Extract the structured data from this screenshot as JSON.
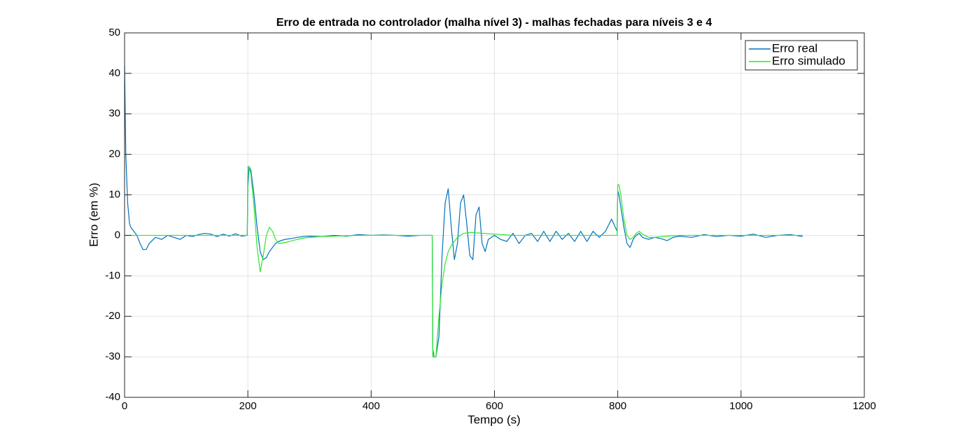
{
  "chart_data": {
    "type": "line",
    "title": "Erro de entrada no controlador (malha nível 3) - malhas fechadas para níveis 3 e 4",
    "x_label": "Tempo (s)",
    "y_label": "Erro (em %)",
    "x": [
      0,
      2,
      5,
      8,
      10,
      15,
      20,
      25,
      30,
      35,
      40,
      50,
      60,
      70,
      80,
      90,
      100,
      110,
      120,
      130,
      140,
      150,
      160,
      170,
      180,
      190,
      199,
      200,
      202,
      205,
      210,
      215,
      220,
      225,
      230,
      235,
      240,
      245,
      250,
      260,
      270,
      280,
      290,
      300,
      320,
      340,
      360,
      380,
      400,
      420,
      440,
      460,
      480,
      499,
      500,
      502,
      505,
      510,
      515,
      520,
      525,
      530,
      535,
      540,
      545,
      550,
      555,
      560,
      565,
      570,
      575,
      580,
      585,
      590,
      600,
      610,
      620,
      630,
      640,
      650,
      660,
      670,
      680,
      690,
      700,
      710,
      720,
      730,
      740,
      750,
      760,
      770,
      780,
      790,
      799,
      800,
      802,
      805,
      810,
      815,
      820,
      825,
      830,
      835,
      840,
      850,
      860,
      870,
      880,
      890,
      900,
      920,
      940,
      960,
      980,
      1000,
      1020,
      1040,
      1060,
      1080,
      1100
    ],
    "series": [
      {
        "name": "Erro real",
        "color": "#0072bd",
        "values": [
          42,
          20,
          8,
          3,
          2,
          1,
          0,
          -2,
          -3.5,
          -3.5,
          -2,
          -0.5,
          -1,
          0,
          -0.5,
          -1,
          0,
          -0.3,
          0.2,
          0.5,
          0.3,
          -0.3,
          0.3,
          -0.2,
          0.4,
          -0.2,
          0,
          12,
          17,
          16,
          10,
          2,
          -4,
          -6,
          -5.5,
          -4,
          -3,
          -2,
          -1.5,
          -1,
          -0.8,
          -0.5,
          -0.3,
          -0.2,
          -0.3,
          0,
          -0.2,
          0.2,
          0,
          0.1,
          0,
          -0.2,
          0,
          0,
          -28,
          -30,
          -30,
          -25,
          -5,
          8,
          11.5,
          2,
          -6,
          -2,
          8,
          10,
          3,
          -5,
          -6,
          5,
          7,
          -2,
          -4,
          -1,
          0,
          -1,
          -1.5,
          0.5,
          -2,
          0,
          0.5,
          -1.5,
          1,
          -1.5,
          1,
          -1,
          0.5,
          -1.5,
          1,
          -1.5,
          1,
          -0.5,
          1,
          4,
          1,
          11,
          10,
          7,
          2,
          -2,
          -3,
          -1,
          0,
          0.5,
          -0.5,
          -1,
          -0.5,
          -0.8,
          -1.3,
          -0.5,
          -0.2,
          -0.5,
          0.2,
          -0.3,
          0,
          -0.2,
          0.3,
          -0.5,
          0,
          0.2,
          -0.3
        ]
      },
      {
        "name": "Erro simulado",
        "color": "#2ee62e",
        "values": [
          0,
          0,
          0,
          0,
          0,
          0,
          0,
          0,
          0,
          0,
          0,
          0,
          0,
          0,
          0,
          0,
          0,
          0,
          0,
          0,
          0,
          0,
          0,
          0,
          0,
          0,
          0,
          17,
          17,
          15,
          7,
          -3,
          -9,
          -5,
          0,
          2,
          1,
          -1,
          -2,
          -1.8,
          -1.4,
          -1,
          -0.7,
          -0.5,
          -0.3,
          -0.2,
          -0.1,
          0,
          0,
          0,
          0,
          0,
          0,
          0,
          -30,
          -30,
          -30,
          -20,
          -12,
          -7,
          -4,
          -2.5,
          -1.5,
          -0.5,
          0,
          0.5,
          0.6,
          0.7,
          0.7,
          0.6,
          0.6,
          0.5,
          0.5,
          0.4,
          0.3,
          0.2,
          0.1,
          0,
          0,
          0,
          0,
          0,
          0,
          0,
          0,
          0,
          0,
          0,
          0,
          0,
          0,
          0,
          0,
          0,
          0,
          12.5,
          12.5,
          10,
          4,
          0,
          -1,
          -0.5,
          0.5,
          1,
          0.3,
          -0.5,
          -0.5,
          -0.3,
          -0.2,
          -0.1,
          0,
          0,
          0,
          0,
          0,
          0,
          0,
          0,
          0,
          0,
          0
        ]
      }
    ],
    "xlim": [
      0,
      1200
    ],
    "xticks": [
      0,
      200,
      400,
      600,
      800,
      1000,
      1200
    ],
    "ylim": [
      -40,
      50
    ],
    "yticks": [
      -40,
      -30,
      -20,
      -10,
      0,
      10,
      20,
      30,
      40,
      50
    ],
    "grid": true,
    "legend_position": "top-right"
  }
}
